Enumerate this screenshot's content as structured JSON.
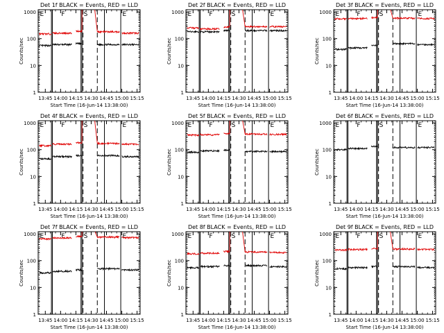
{
  "figure": {
    "ylabel": "Counts/sec",
    "xlabel": "Start Time (16-Jun-14 13:38:00)",
    "x_ticks": [
      "13:45",
      "14:00",
      "14:15",
      "14:30",
      "14:45",
      "15:00",
      "15:15"
    ],
    "y_ticks": [
      "1",
      "10",
      "100",
      "1000"
    ],
    "colors": {
      "events": "#000000",
      "lld": "#e00000"
    },
    "segment_labels": [
      "E",
      "F",
      "S",
      "E"
    ]
  },
  "chart_data": [
    {
      "type": "line",
      "title": "Det 1f BLACK = Events, RED = LLD",
      "y_scale": "log",
      "ylim": [
        1,
        1200
      ],
      "xlim": [
        "13:38",
        "15:18"
      ],
      "series": [
        {
          "name": "Events",
          "levels": [
            55,
            60,
            65,
            60,
            60,
            60
          ]
        },
        {
          "name": "LLD",
          "levels": [
            150,
            160,
            190,
            180,
            160,
            170
          ]
        }
      ]
    },
    {
      "type": "line",
      "title": "Det 2f BLACK = Events, RED = LLD",
      "y_scale": "log",
      "ylim": [
        1,
        1200
      ],
      "xlim": [
        "13:38",
        "15:18"
      ],
      "series": [
        {
          "name": "Events",
          "levels": [
            180,
            180,
            200,
            200,
            200,
            210
          ]
        },
        {
          "name": "LLD",
          "levels": [
            250,
            230,
            270,
            280,
            280,
            290
          ]
        }
      ]
    },
    {
      "type": "line",
      "title": "Det 3f BLACK = Events, RED = LLD",
      "y_scale": "log",
      "ylim": [
        1,
        1200
      ],
      "xlim": [
        "13:38",
        "15:18"
      ],
      "series": [
        {
          "name": "Events",
          "levels": [
            40,
            45,
            55,
            65,
            60,
            60
          ]
        },
        {
          "name": "LLD",
          "levels": [
            550,
            560,
            600,
            580,
            560,
            560
          ]
        }
      ]
    },
    {
      "type": "line",
      "title": "Det 4f BLACK = Events, RED = LLD",
      "y_scale": "log",
      "ylim": [
        1,
        1200
      ],
      "xlim": [
        "13:38",
        "15:18"
      ],
      "series": [
        {
          "name": "Events",
          "levels": [
            45,
            55,
            60,
            60,
            55,
            55
          ]
        },
        {
          "name": "LLD",
          "levels": [
            140,
            160,
            180,
            170,
            160,
            160
          ]
        }
      ]
    },
    {
      "type": "line",
      "title": "Det 5f BLACK = Events, RED = LLD",
      "y_scale": "log",
      "ylim": [
        1,
        1200
      ],
      "xlim": [
        "13:38",
        "15:18"
      ],
      "series": [
        {
          "name": "Events",
          "levels": [
            80,
            90,
            95,
            85,
            85,
            85
          ]
        },
        {
          "name": "LLD",
          "levels": [
            350,
            360,
            400,
            380,
            370,
            370
          ]
        }
      ]
    },
    {
      "type": "line",
      "title": "Det 6f BLACK = Events, RED = LLD",
      "y_scale": "log",
      "ylim": [
        1,
        1200
      ],
      "xlim": [
        "13:38",
        "15:18"
      ],
      "series": [
        {
          "name": "Events",
          "levels": [
            100,
            110,
            130,
            120,
            120,
            120
          ]
        }
      ]
    },
    {
      "type": "line",
      "title": "Det 7f BLACK = Events, RED = LLD",
      "y_scale": "log",
      "ylim": [
        1,
        1200
      ],
      "xlim": [
        "13:38",
        "15:18"
      ],
      "series": [
        {
          "name": "Events",
          "levels": [
            35,
            40,
            45,
            50,
            45,
            45
          ]
        },
        {
          "name": "LLD",
          "levels": [
            650,
            700,
            800,
            750,
            720,
            720
          ]
        }
      ]
    },
    {
      "type": "line",
      "title": "Det 8f BLACK = Events, RED = LLD",
      "y_scale": "log",
      "ylim": [
        1,
        1200
      ],
      "xlim": [
        "13:38",
        "15:18"
      ],
      "series": [
        {
          "name": "Events",
          "levels": [
            55,
            60,
            65,
            65,
            60,
            60
          ]
        },
        {
          "name": "LLD",
          "levels": [
            180,
            190,
            220,
            210,
            200,
            200
          ]
        }
      ]
    },
    {
      "type": "line",
      "title": "Det 9f BLACK = Events, RED = LLD",
      "y_scale": "log",
      "ylim": [
        1,
        1200
      ],
      "xlim": [
        "13:38",
        "15:18"
      ],
      "series": [
        {
          "name": "Events",
          "levels": [
            50,
            55,
            60,
            60,
            55,
            55
          ]
        },
        {
          "name": "LLD",
          "levels": [
            250,
            260,
            280,
            270,
            260,
            260
          ]
        }
      ]
    }
  ]
}
